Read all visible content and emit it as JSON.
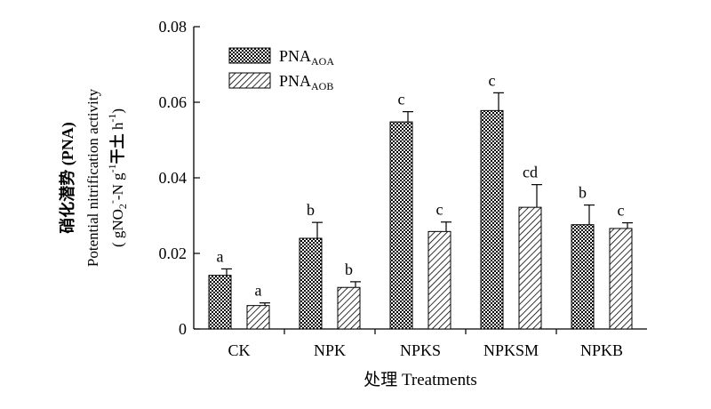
{
  "chart_data": {
    "type": "bar",
    "categories": [
      "CK",
      "NPK",
      "NPKS",
      "NPKSM",
      "NPKB"
    ],
    "series": [
      {
        "name": "PNA",
        "name_sub": "AOA",
        "pattern": "checker",
        "values": [
          0.0142,
          0.024,
          0.0548,
          0.0578,
          0.0276
        ],
        "errors": [
          0.0017,
          0.0042,
          0.0027,
          0.0047,
          0.0052
        ],
        "letters": [
          "a",
          "b",
          "c",
          "c",
          "b"
        ]
      },
      {
        "name": "PNA",
        "name_sub": "AOB",
        "pattern": "diagonal",
        "values": [
          0.0062,
          0.011,
          0.0258,
          0.0322,
          0.0266
        ],
        "errors": [
          0.0007,
          0.0015,
          0.0025,
          0.006,
          0.0015
        ],
        "letters": [
          "a",
          "b",
          "c",
          "cd",
          "c"
        ]
      }
    ],
    "ylim": [
      0,
      0.08
    ],
    "yticks": [
      "0",
      "0.02",
      "0.04",
      "0.06",
      "0.08"
    ],
    "xlabel": "处理 Treatments",
    "ylabel_cn": "硝化潜势 (PNA)",
    "ylabel_en": "Potential nitrification activity",
    "ylabel_unit": "( gNO2--N g-1干土 h-1)",
    "legend_position": "top-left",
    "grid": false
  }
}
